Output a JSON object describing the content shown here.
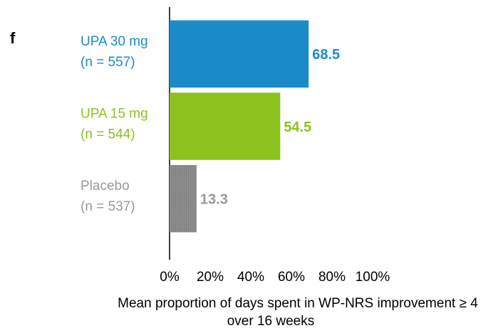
{
  "chart_data": {
    "type": "barh",
    "panel_label": "f",
    "categories": [
      "UPA 30 mg",
      "UPA 15 mg",
      "Placebo"
    ],
    "category_sublabels": [
      "(n = 557)",
      "(n = 544)",
      "(n = 537)"
    ],
    "values": [
      68.5,
      54.5,
      13.3
    ],
    "colors": [
      "#1b8bc8",
      "#8cc21e",
      "#8c8c8c"
    ],
    "xlim": [
      0,
      100
    ],
    "xticks": [
      {
        "value": 0,
        "label": "0%"
      },
      {
        "value": 20,
        "label": "20%"
      },
      {
        "value": 40,
        "label": "40%"
      },
      {
        "value": 60,
        "label": "60%"
      },
      {
        "value": 80,
        "label": "80%"
      },
      {
        "value": 100,
        "label": "100%"
      }
    ],
    "xlabel": [
      "Mean proportion of days spent in WP-NRS improvement ≥ 4",
      "over 16 weeks"
    ]
  }
}
